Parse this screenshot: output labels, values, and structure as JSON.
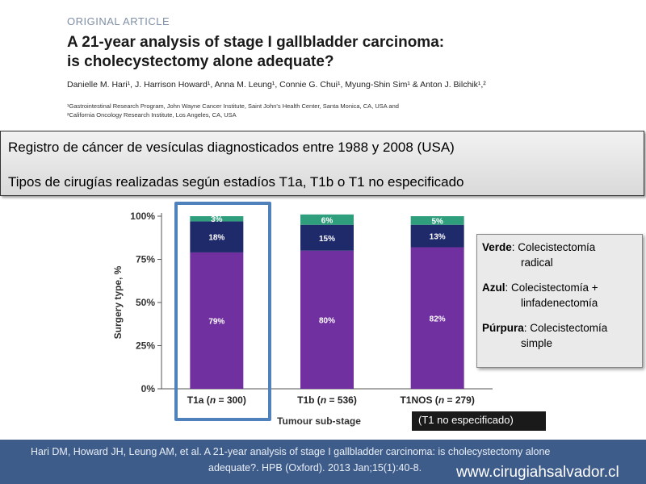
{
  "article": {
    "label": "ORIGINAL ARTICLE",
    "title_line1": "A 21-year analysis of stage I gallbladder carcinoma:",
    "title_line2": "is cholecystectomy alone adequate?",
    "authors": "Danielle M. Hari¹, J. Harrison Howard¹, Anna M. Leung¹, Connie G. Chui¹, Myung-Shin Sim¹ & Anton J. Bilchik¹,²",
    "affiliation1": "¹Gastrointestinal Research Program, John Wayne Cancer Institute, Saint John's Health Center, Santa Monica, CA, USA and",
    "affiliation2": "²California Oncology Research Institute, Los Angeles, CA, USA"
  },
  "info_box": {
    "line1": "Registro de cáncer de vesículas diagnosticados entre 1988 y 2008 (USA)",
    "line2": "Tipos de cirugías realizadas según estadíos T1a, T1b o T1 no especificado"
  },
  "legend": {
    "green_key": "Verde",
    "green_line1": ": Colecistectomía",
    "green_line2": "radical",
    "blue_key": "Azul",
    "blue_line1": ":  Colecistectomía +",
    "blue_line2": "linfadenectomía",
    "purple_key": "Púrpura",
    "purple_line1": ": Colecistectomía",
    "purple_line2": "simple"
  },
  "note": "(T1 no especificado)",
  "footer": {
    "citation_line1": "Hari DM, Howard JH, Leung AM, et al. A 21-year analysis of stage I gallbladder carcinoma: is cholecystectomy alone",
    "citation_line2": "adequate?.  HPB (Oxford). 2013 Jan;15(1):40-8.",
    "website": "www.cirugiahsalvador.cl"
  },
  "colors": {
    "purple": "#7030a0",
    "navy": "#1f2a6b",
    "teal": "#2e9e7c",
    "highlight": "#4f81bd"
  },
  "chart_data": {
    "type": "bar",
    "stacked": true,
    "categories": [
      "T1a (n = 300)",
      "T1b (n = 536)",
      "T1NOS (n = 279)"
    ],
    "series": [
      {
        "color": "#7030a0",
        "values": [
          79,
          80,
          82
        ],
        "labels": [
          "79%",
          "80%",
          "82%"
        ]
      },
      {
        "color": "#1f2a6b",
        "values": [
          18,
          15,
          13
        ],
        "labels": [
          "18%",
          "15%",
          "13%"
        ]
      },
      {
        "color": "#2e9e7c",
        "values": [
          3,
          6,
          5
        ],
        "labels": [
          "3%",
          "6%",
          "5%"
        ]
      }
    ],
    "xlabel": "Tumour sub-stage",
    "ylabel": "Surgery type, %",
    "yticks": [
      "0%",
      "25%",
      "50%",
      "75%",
      "100%"
    ],
    "ylim": [
      0,
      100
    ],
    "grid": false
  }
}
